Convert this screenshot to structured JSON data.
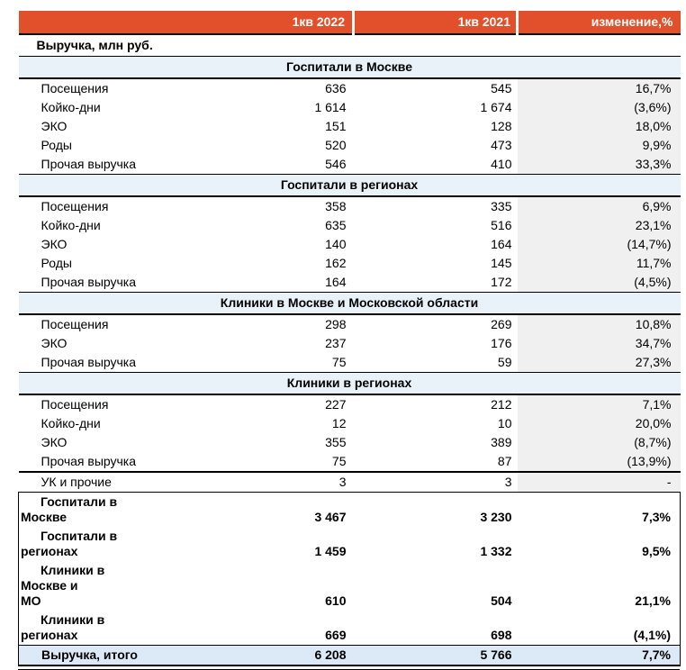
{
  "header": {
    "col_2022": "1кв 2022",
    "col_2021": "1кв 2021",
    "col_change": "изменение,%"
  },
  "title_row": "Выручка, млн руб.",
  "sections": [
    {
      "title": "Госпитали в Москве",
      "rows": [
        {
          "label": "Посещения",
          "v2022": "636",
          "v2021": "545",
          "change": "16,7%"
        },
        {
          "label": "Койко-дни",
          "v2022": "1 614",
          "v2021": "1 674",
          "change": "(3,6%)"
        },
        {
          "label": "ЭКО",
          "v2022": "151",
          "v2021": "128",
          "change": "18,0%"
        },
        {
          "label": "Роды",
          "v2022": "520",
          "v2021": "473",
          "change": "9,9%"
        },
        {
          "label": "Прочая выручка",
          "v2022": "546",
          "v2021": "410",
          "change": "33,3%"
        }
      ]
    },
    {
      "title": "Госпитали в регионах",
      "rows": [
        {
          "label": "Посещения",
          "v2022": "358",
          "v2021": "335",
          "change": "6,9%"
        },
        {
          "label": "Койко-дни",
          "v2022": "635",
          "v2021": "516",
          "change": "23,1%"
        },
        {
          "label": "ЭКО",
          "v2022": "140",
          "v2021": "164",
          "change": "(14,7%)"
        },
        {
          "label": "Роды",
          "v2022": "162",
          "v2021": "145",
          "change": "11,7%"
        },
        {
          "label": "Прочая выручка",
          "v2022": "164",
          "v2021": "172",
          "change": "(4,5%)"
        }
      ]
    },
    {
      "title": "Клиники в Москве и Московской области",
      "rows": [
        {
          "label": "Посещения",
          "v2022": "298",
          "v2021": "269",
          "change": "10,8%"
        },
        {
          "label": "ЭКО",
          "v2022": "237",
          "v2021": "176",
          "change": "34,7%"
        },
        {
          "label": "Прочая выручка",
          "v2022": "75",
          "v2021": "59",
          "change": "27,3%"
        }
      ]
    },
    {
      "title": "Клиники в регионах",
      "rows": [
        {
          "label": "Посещения",
          "v2022": "227",
          "v2021": "212",
          "change": "7,1%"
        },
        {
          "label": "Койко-дни",
          "v2022": "12",
          "v2021": "10",
          "change": "20,0%"
        },
        {
          "label": "ЭКО",
          "v2022": "355",
          "v2021": "389",
          "change": "(8,7%)"
        },
        {
          "label": "Прочая выручка",
          "v2022": "75",
          "v2021": "87",
          "change": "(13,9%)"
        }
      ]
    }
  ],
  "uk_row": {
    "label": "УК и прочие",
    "v2022": "3",
    "v2021": "3",
    "change": "-"
  },
  "summary": [
    {
      "label": "Госпитали в Москве",
      "v2022": "3 467",
      "v2021": "3 230",
      "change": "7,3%"
    },
    {
      "label": "Госпитали в\nрегионах",
      "v2022": "1 459",
      "v2021": "1 332",
      "change": "9,5%"
    },
    {
      "label": "Клиники в Москве и\nМО",
      "v2022": "610",
      "v2021": "504",
      "change": "21,1%"
    },
    {
      "label": "Клиники в регионах",
      "v2022": "669",
      "v2021": "698",
      "change": "(4,1%)"
    }
  ],
  "total": {
    "label": "Выручка, итого",
    "v2022": "6 208",
    "v2021": "5 766",
    "change": "7,7%"
  },
  "colors": {
    "accent": "#e2502b",
    "section-bg": "#eaf2f9",
    "change-bg": "#f0f0f0",
    "total-bg": "#dce9f6",
    "rule": "#000000"
  }
}
